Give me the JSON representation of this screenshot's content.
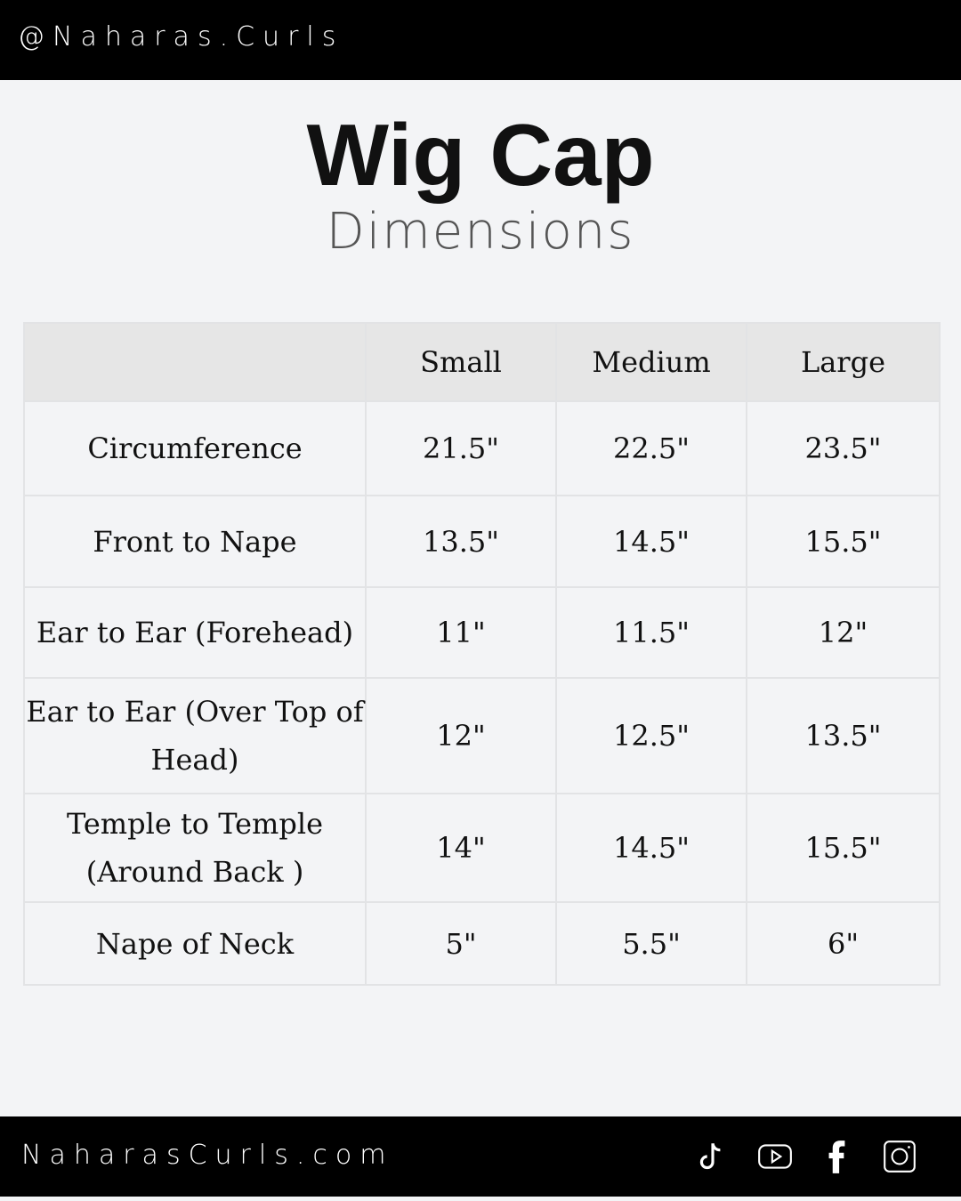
{
  "header": {
    "handle": "@Naharas.Curls"
  },
  "title": "Wig Cap",
  "subtitle": "Dimensions",
  "table": {
    "columns": [
      "",
      "Small",
      "Medium",
      "Large"
    ],
    "rows": [
      [
        "Circumference",
        "21.5\"",
        "22.5\"",
        "23.5\""
      ],
      [
        "Front to Nape",
        "13.5\"",
        "14.5\"",
        "15.5\""
      ],
      [
        "Ear to Ear (Forehead)",
        "11\"",
        "11.5\"",
        "12\""
      ],
      [
        "Ear to Ear (Over Top of Head)",
        "12\"",
        "12.5\"",
        "13.5\""
      ],
      [
        "Temple to Temple (Around Back )",
        "14\"",
        "14.5\"",
        "15.5\""
      ],
      [
        "Nape of Neck",
        "5\"",
        "5.5\"",
        "6\""
      ]
    ]
  },
  "footer": {
    "website": "NaharasCurls.com",
    "social_icons": [
      "tiktok-icon",
      "youtube-icon",
      "facebook-icon",
      "instagram-icon"
    ]
  }
}
